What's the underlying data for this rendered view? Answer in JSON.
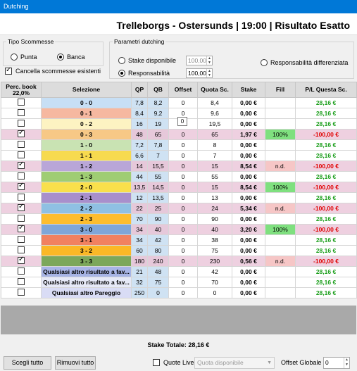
{
  "window": {
    "title": "Dutching"
  },
  "header": {
    "title": "Trelleborgs - Ostersunds | 19:00 | Risultato Esatto"
  },
  "tipo": {
    "legend": "Tipo Scommesse",
    "punta": "Punta",
    "banca": "Banca",
    "selected": "Banca",
    "cancella_label": "Cancella scommesse esistenti",
    "cancella_checked": true
  },
  "parametri": {
    "legend": "Parametri dutching",
    "stake_label": "Stake disponibile",
    "stake_value": "100,00",
    "resp_label": "Responsabilità",
    "resp_value": "100,00",
    "resp_diff_label": "Responsabilità differenziata",
    "selected": "Responsabilità"
  },
  "table": {
    "headers": {
      "book": "Perc. book",
      "book_value": "22,0%",
      "selezione": "Selezione",
      "qp": "QP",
      "qb": "QB",
      "offset": "Offset",
      "quota": "Quota Sc.",
      "stake": "Stake",
      "fill": "Fill",
      "pl": "P/L Questa Sc."
    },
    "rows": [
      {
        "checked": false,
        "sel": "0 - 0",
        "color": "#c7dff5",
        "qp": "7,8",
        "qb": "8,2",
        "offset": "0",
        "quota": "8,4",
        "stake": "0,00 €",
        "fill": "",
        "pl": "28,16 €",
        "neg": false
      },
      {
        "checked": false,
        "sel": "0 - 1",
        "color": "#f6b8a0",
        "qp": "8,4",
        "qb": "9,2",
        "offset": "0",
        "quota": "9,6",
        "stake": "0,00 €",
        "fill": "",
        "pl": "28,16 €",
        "neg": false
      },
      {
        "checked": false,
        "sel": "0 - 2",
        "color": "#fdf3c2",
        "qp": "16",
        "qb": "19",
        "offset": "0",
        "quota": "19,5",
        "stake": "0,00 €",
        "fill": "",
        "pl": "28,16 €",
        "neg": false
      },
      {
        "checked": true,
        "sel": "0 - 3",
        "color": "#f7c886",
        "qp": "48",
        "qb": "65",
        "offset": "0",
        "quota": "65",
        "stake": "1,97 €",
        "fill": "100%",
        "pl": "-100,00 €",
        "neg": true
      },
      {
        "checked": false,
        "sel": "1 - 0",
        "color": "#c9e3b3",
        "qp": "7,2",
        "qb": "7,8",
        "offset": "0",
        "quota": "8",
        "stake": "0,00 €",
        "fill": "",
        "pl": "28,16 €",
        "neg": false
      },
      {
        "checked": false,
        "sel": "1 - 1",
        "color": "#f7da4f",
        "qp": "6,6",
        "qb": "7",
        "offset": "0",
        "quota": "7",
        "stake": "0,00 €",
        "fill": "",
        "pl": "28,16 €",
        "neg": false
      },
      {
        "checked": true,
        "sel": "1 - 2",
        "color": "#b9a6d8",
        "qp": "14",
        "qb": "15,5",
        "offset": "0",
        "quota": "15",
        "stake": "8,54 €",
        "fill": "n.d.",
        "pl": "-100,00 €",
        "neg": true
      },
      {
        "checked": false,
        "sel": "1 - 3",
        "color": "#9fcd73",
        "qp": "44",
        "qb": "55",
        "offset": "0",
        "quota": "55",
        "stake": "0,00 €",
        "fill": "",
        "pl": "28,16 €",
        "neg": false
      },
      {
        "checked": true,
        "sel": "2 - 0",
        "color": "#f9e04c",
        "qp": "13,5",
        "qb": "14,5",
        "offset": "0",
        "quota": "15",
        "stake": "8,54 €",
        "fill": "100%",
        "pl": "-100,00 €",
        "neg": true
      },
      {
        "checked": false,
        "sel": "2 - 1",
        "color": "#a88fcc",
        "qp": "12",
        "qb": "13,5",
        "offset": "0",
        "quota": "13",
        "stake": "0,00 €",
        "fill": "",
        "pl": "28,16 €",
        "neg": false
      },
      {
        "checked": true,
        "sel": "2 - 2",
        "color": "#8fc0e3",
        "qp": "22",
        "qb": "25",
        "offset": "0",
        "quota": "24",
        "stake": "5,34 €",
        "fill": "n.d.",
        "pl": "-100,00 €",
        "neg": true
      },
      {
        "checked": false,
        "sel": "2 - 3",
        "color": "#fdbd2e",
        "qp": "70",
        "qb": "90",
        "offset": "0",
        "quota": "90",
        "stake": "0,00 €",
        "fill": "",
        "pl": "28,16 €",
        "neg": false
      },
      {
        "checked": true,
        "sel": "3 - 0",
        "color": "#7fa6d8",
        "qp": "34",
        "qb": "40",
        "offset": "0",
        "quota": "40",
        "stake": "3,20 €",
        "fill": "100%",
        "pl": "-100,00 €",
        "neg": true
      },
      {
        "checked": false,
        "sel": "3 - 1",
        "color": "#f18160",
        "qp": "34",
        "qb": "42",
        "offset": "0",
        "quota": "38",
        "stake": "0,00 €",
        "fill": "",
        "pl": "28,16 €",
        "neg": false
      },
      {
        "checked": false,
        "sel": "3 - 2",
        "color": "#fbb826",
        "qp": "60",
        "qb": "80",
        "offset": "0",
        "quota": "75",
        "stake": "0,00 €",
        "fill": "",
        "pl": "28,16 €",
        "neg": false
      },
      {
        "checked": true,
        "sel": "3 - 3",
        "color": "#7ca75a",
        "qp": "180",
        "qb": "240",
        "offset": "0",
        "quota": "230",
        "stake": "0,56 €",
        "fill": "n.d.",
        "pl": "-100,00 €",
        "neg": true
      },
      {
        "checked": false,
        "sel": "Qualsiasi altro risultato a fav...",
        "color": "#a7b4e5",
        "qp": "21",
        "qb": "48",
        "offset": "0",
        "quota": "42",
        "stake": "0,00 €",
        "fill": "",
        "pl": "28,16 €",
        "neg": false
      },
      {
        "checked": false,
        "sel": "Qualsiasi altro risultato a fav...",
        "color": "#e6e9f7",
        "qp": "32",
        "qb": "75",
        "offset": "0",
        "quota": "70",
        "stake": "0,00 €",
        "fill": "",
        "pl": "28,16 €",
        "neg": false
      },
      {
        "checked": false,
        "sel": "Qualsiasi altro Pareggio",
        "color": "#d9dcf5",
        "qp": "250",
        "qb": "0",
        "offset": "0",
        "quota": "0",
        "stake": "0,00 €",
        "fill": "",
        "pl": "28,16 €",
        "neg": false
      }
    ]
  },
  "tooltip": "0",
  "stake_totale": "Stake Totale: 28,16 €",
  "footer": {
    "scegli": "Scegli tutto",
    "rimuovi": "Rimuovi tutto",
    "quote_live": "Quote Live",
    "quota_select": "Quota disponibile",
    "offset_label": "Offset Globale",
    "offset_value": "0"
  }
}
